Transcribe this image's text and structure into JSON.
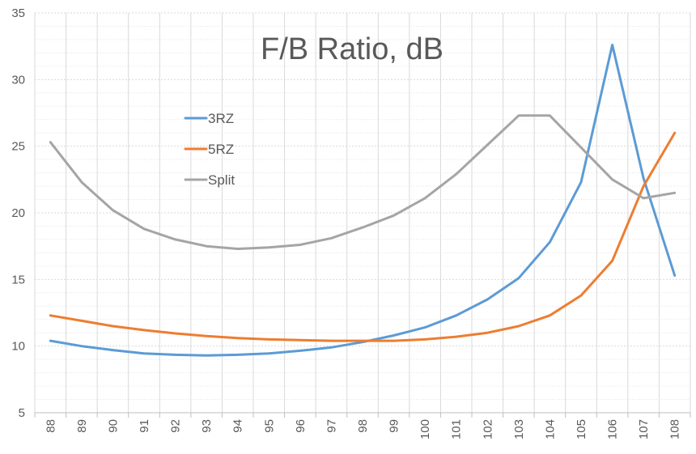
{
  "chart_data": {
    "type": "line",
    "title": "F/B Ratio, dB",
    "xlabel": "",
    "ylabel": "",
    "categories": [
      "88",
      "89",
      "90",
      "91",
      "92",
      "93",
      "94",
      "95",
      "96",
      "97",
      "98",
      "99",
      "100",
      "101",
      "102",
      "103",
      "104",
      "105",
      "106",
      "107",
      "108"
    ],
    "ylim": [
      5,
      35
    ],
    "yticks": [
      5,
      10,
      15,
      20,
      25,
      30,
      35
    ],
    "grid": true,
    "legend_position": "upper-left-inside",
    "series": [
      {
        "name": "3RZ",
        "color": "#5B9BD5",
        "values": [
          10.4,
          10.0,
          9.7,
          9.45,
          9.35,
          9.3,
          9.35,
          9.45,
          9.65,
          9.9,
          10.3,
          10.8,
          11.4,
          12.3,
          13.5,
          15.1,
          17.8,
          22.3,
          32.6,
          22.6,
          15.3
        ]
      },
      {
        "name": "5RZ",
        "color": "#ED7D31",
        "values": [
          12.3,
          11.9,
          11.5,
          11.2,
          10.95,
          10.75,
          10.6,
          10.5,
          10.45,
          10.4,
          10.4,
          10.4,
          10.5,
          10.7,
          11.0,
          11.5,
          12.3,
          13.8,
          16.4,
          22.0,
          26.0
        ]
      },
      {
        "name": "Split",
        "color": "#A5A5A5",
        "values": [
          25.3,
          22.3,
          20.2,
          18.8,
          18.0,
          17.5,
          17.3,
          17.4,
          17.6,
          18.1,
          18.9,
          19.8,
          21.1,
          22.9,
          25.1,
          27.3,
          27.3,
          24.9,
          22.5,
          21.1,
          21.5
        ]
      }
    ]
  }
}
